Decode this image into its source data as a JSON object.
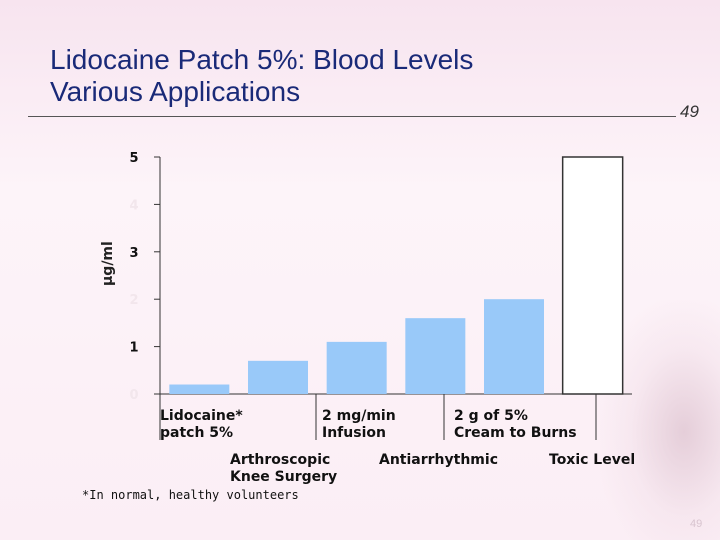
{
  "slide": {
    "title_line1": "Lidocaine Patch 5%: Blood Levels",
    "title_line2": "Various Applications",
    "slide_number": "49",
    "corner_number": "49",
    "footnote": "*In normal, healthy volunteers"
  },
  "chart_data": {
    "type": "bar",
    "ylabel": "µg/ml",
    "ylim": [
      0,
      5
    ],
    "yticks": [
      "0",
      "1",
      "2",
      "3",
      "4",
      "5"
    ],
    "categories": [
      "Lidocaine* patch 5%",
      "Arthroscopic Knee Surgery",
      "2 mg/min Infusion",
      "Antiarrhythmic",
      "2 g of 5% Cream to Burns",
      "Toxic Level"
    ],
    "category_labels": [
      {
        "line1": "Lidocaine*",
        "line2": "patch 5%"
      },
      {
        "line1": "Arthroscopic",
        "line2": "Knee Surgery"
      },
      {
        "line1": "2 mg/min",
        "line2": "Infusion"
      },
      {
        "line1": "Antiarrhythmic",
        "line2": ""
      },
      {
        "line1": "2 g of 5%",
        "line2": "Cream to Burns"
      },
      {
        "line1": "Toxic Level",
        "line2": ""
      }
    ],
    "values": [
      0.2,
      0.7,
      1.1,
      1.6,
      2.0,
      5.0
    ],
    "colors": {
      "bar": "#99c9f9",
      "toxic_bar_fill": "#ffffff",
      "toxic_bar_stroke": "#333333",
      "axis": "#333333"
    },
    "grid": false,
    "legend": "none"
  }
}
